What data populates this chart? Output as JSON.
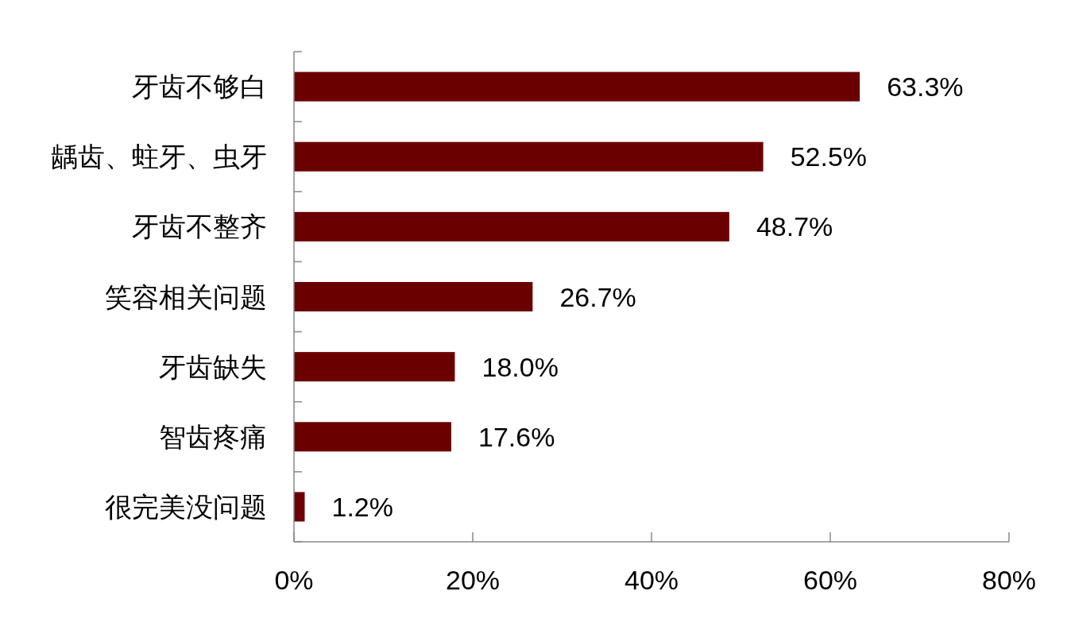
{
  "chart_data": {
    "type": "bar",
    "orientation": "horizontal",
    "categories": [
      "牙齿不够白",
      "龋齿、蛀牙、虫牙",
      "牙齿不整齐",
      "笑容相关问题",
      "牙齿缺失",
      "智齿疼痛",
      "很完美没问题"
    ],
    "values": [
      63.3,
      52.5,
      48.7,
      26.7,
      18.0,
      17.6,
      1.2
    ],
    "value_labels": [
      "63.3%",
      "52.5%",
      "48.7%",
      "26.7%",
      "18.0%",
      "17.6%",
      "1.2%"
    ],
    "color": "#6b0000",
    "xlim": [
      0,
      80
    ],
    "xticks": [
      {
        "value": 0,
        "label": "0%"
      },
      {
        "value": 20,
        "label": "20%"
      },
      {
        "value": 40,
        "label": "40%"
      },
      {
        "value": 60,
        "label": "60%"
      },
      {
        "value": 80,
        "label": "80%"
      }
    ],
    "grid": false
  }
}
